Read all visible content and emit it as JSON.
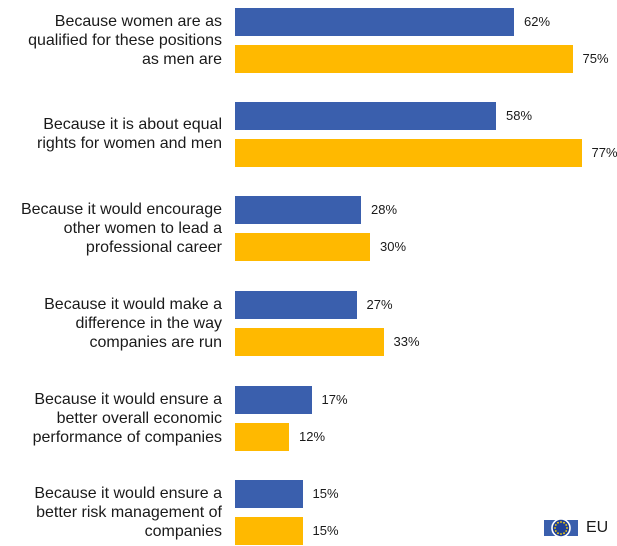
{
  "chart_data": {
    "type": "bar",
    "orientation": "horizontal",
    "categories": [
      [
        "Because women are as",
        "qualified for these positions",
        "as men are"
      ],
      [
        "Because it is about equal",
        "rights for women and men"
      ],
      [
        "Because it would encourage",
        "other women to lead a",
        "professional career"
      ],
      [
        "Because it would make a",
        "difference in the way",
        "companies are run"
      ],
      [
        "Because it would ensure a",
        "better overall economic",
        "performance of companies"
      ],
      [
        "Because it would ensure a",
        "better risk management of",
        "companies"
      ]
    ],
    "series": [
      {
        "values": [
          62,
          58,
          28,
          27,
          17,
          15
        ],
        "color": "#3a5fad"
      },
      {
        "values": [
          75,
          77,
          30,
          33,
          12,
          15
        ],
        "color": "#ffb900"
      }
    ],
    "value_suffix": "%",
    "xlim": [
      0,
      100
    ],
    "legend": {
      "position": "bottom-right",
      "label": "EU",
      "icon": "eu-flag-icon"
    }
  }
}
